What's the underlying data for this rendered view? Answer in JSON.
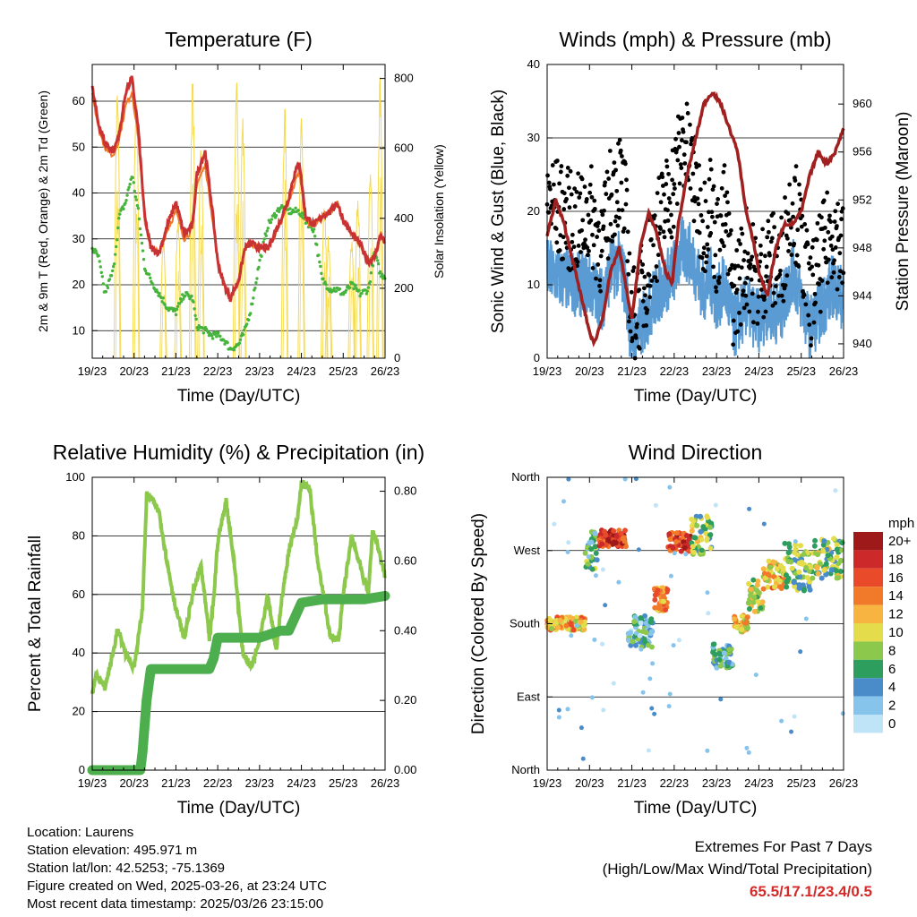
{
  "info": {
    "location": "Location: Laurens",
    "elevation": "Station elevation: 495.971 m",
    "latlon": "Station lat/lon: 42.5253; -75.1369",
    "created": "Figure created on Wed, 2025-03-26, at 23:24 UTC",
    "recent": "Most recent data timestamp: 2025/03/26 23:15:00"
  },
  "extremes": {
    "title": "Extremes For Past 7 Days",
    "subtitle": "(High/Low/Max Wind/Total Precipitation)",
    "values": "65.5/17.1/23.4/0.5"
  },
  "colors": {
    "temp2m": "#c83232",
    "temp9m": "#f07828",
    "dewpoint": "#46b43c",
    "solar": "#f5d94a",
    "wind": "#5a9bd3",
    "gust": "#000000",
    "pressure": "#a02020",
    "rh": "#8cc84b",
    "precip": "#4cae4c"
  },
  "chart_data": [
    {
      "type": "line",
      "title": "Temperature (F)",
      "xlabel": "Time (Day/UTC)",
      "ylabel": "2m & 9m T (Red, Orange) & 2m Td (Green)",
      "y2label": "Solar Insolation (Yellow)",
      "x_ticks": [
        "19/23",
        "20/23",
        "21/23",
        "22/23",
        "23/23",
        "24/23",
        "25/23",
        "26/23"
      ],
      "ylim": [
        4,
        68
      ],
      "y_ticks": [
        10,
        20,
        30,
        40,
        50,
        60
      ],
      "y2lim": [
        0,
        840
      ],
      "y2_ticks": [
        0,
        200,
        400,
        600,
        800
      ],
      "grid": true,
      "x_days": [
        0,
        0.15,
        0.3,
        0.5,
        0.65,
        0.8,
        0.95,
        1.1,
        1.25,
        1.4,
        1.6,
        1.8,
        2.0,
        2.2,
        2.4,
        2.5,
        2.7,
        2.85,
        3.0,
        3.15,
        3.3,
        3.5,
        3.65,
        3.8,
        4.0,
        4.2,
        4.5,
        4.7,
        4.8,
        4.95,
        5.1,
        5.3,
        5.5,
        5.7,
        5.85,
        6.0,
        6.2,
        6.4,
        6.6,
        6.75,
        6.9,
        7.0
      ],
      "series": [
        {
          "values": [
            63,
            55,
            51,
            49,
            53,
            62,
            65,
            54,
            35,
            28,
            27,
            33,
            38,
            31,
            33,
            44,
            49,
            38,
            25,
            20,
            17,
            21,
            28,
            29,
            28,
            28,
            34,
            39,
            43,
            47,
            35,
            33,
            35,
            36,
            38,
            34,
            31,
            29,
            25,
            26,
            31,
            29
          ]
        },
        {
          "values": [
            62,
            54,
            50,
            48,
            52,
            59,
            62,
            52,
            34,
            28,
            27,
            32,
            36,
            30,
            32,
            42,
            46,
            36,
            25,
            20,
            17,
            21,
            28,
            29,
            28,
            28,
            33,
            38,
            41,
            45,
            34,
            33,
            35,
            36,
            38,
            34,
            31,
            29,
            25,
            26,
            31,
            29
          ]
        },
        {
          "values": [
            28,
            26,
            18,
            23,
            35,
            38,
            44,
            36,
            24,
            21,
            18,
            15,
            14,
            18,
            17,
            11,
            10,
            9,
            9,
            8,
            6,
            7,
            10,
            15,
            25,
            33,
            37,
            36,
            36,
            36,
            34,
            32,
            21,
            19,
            19,
            18,
            20,
            18,
            19,
            27,
            22,
            22
          ]
        }
      ],
      "solar": {
        "days": [
          0.6,
          1.05,
          1.7,
          2.05,
          2.4,
          2.6,
          3.45,
          3.6,
          4.6,
          5.0,
          5.55,
          5.65,
          6.2,
          6.35,
          6.65,
          6.88
        ],
        "peaks": [
          780,
          790,
          350,
          420,
          810,
          610,
          810,
          690,
          730,
          690,
          450,
          360,
          360,
          470,
          550,
          820
        ]
      }
    },
    {
      "type": "scatter",
      "title": "Winds (mph) & Pressure (mb)",
      "xlabel": "Time (Day/UTC)",
      "ylabel": "Sonic Wind & Gust (Blue, Black)",
      "y2label": "Station Pressure (Maroon)",
      "x_ticks": [
        "19/23",
        "20/23",
        "21/23",
        "22/23",
        "23/23",
        "24/23",
        "25/23",
        "26/23"
      ],
      "ylim": [
        0,
        40
      ],
      "y_ticks": [
        0,
        10,
        20,
        30,
        40
      ],
      "y2lim": [
        938.8,
        963.3
      ],
      "y2_ticks": [
        940,
        944,
        948,
        952,
        956,
        960
      ],
      "grid": true,
      "wind_x": [
        0,
        0.3,
        0.7,
        1.0,
        1.3,
        1.5,
        1.7,
        1.85,
        2.0,
        2.3,
        2.5,
        2.75,
        3.0,
        3.2,
        3.4,
        3.7,
        3.85,
        4.0,
        4.2,
        4.4,
        4.7,
        5.0,
        5.2,
        5.5,
        5.8,
        6.0,
        6.2,
        6.5,
        6.75,
        7.0
      ],
      "wind_mean": [
        12,
        11,
        10,
        10,
        8,
        12,
        13,
        10,
        2,
        5,
        8,
        10,
        12,
        15,
        14,
        9,
        11,
        8,
        10,
        4,
        7,
        5,
        7,
        6,
        12,
        8,
        4,
        7,
        10,
        8
      ],
      "gust_mean": [
        22,
        20,
        18,
        20,
        15,
        22,
        25,
        20,
        5,
        10,
        16,
        20,
        24,
        30,
        26,
        18,
        22,
        15,
        20,
        8,
        14,
        10,
        14,
        12,
        22,
        16,
        8,
        14,
        18,
        14
      ],
      "pressure_x": [
        0,
        0.2,
        0.4,
        0.6,
        0.8,
        1.0,
        1.1,
        1.3,
        1.5,
        1.7,
        1.9,
        2.0,
        2.2,
        2.4,
        2.6,
        2.8,
        2.95,
        3.1,
        3.3,
        3.5,
        3.7,
        3.9,
        4.1,
        4.3,
        4.5,
        4.7,
        4.9,
        5.0,
        5.2,
        5.4,
        5.6,
        5.8,
        6.0,
        6.2,
        6.4,
        6.6,
        6.8,
        7.0
      ],
      "pressure": [
        949,
        952,
        950,
        947,
        944,
        941,
        940,
        942,
        946,
        948,
        944,
        942,
        948,
        951,
        949,
        946,
        945,
        950,
        954,
        957,
        960,
        961,
        960,
        958,
        956,
        951,
        948,
        946,
        944,
        948,
        950,
        950,
        951,
        954,
        956,
        955,
        956,
        958
      ]
    },
    {
      "type": "line",
      "title": "Relative Humidity (%) & Precipitation (in)",
      "xlabel": "Time (Day/UTC)",
      "ylabel": "Percent & Total Rainfall",
      "x_ticks": [
        "19/23",
        "20/23",
        "21/23",
        "22/23",
        "23/23",
        "24/23",
        "25/23",
        "26/23"
      ],
      "ylim": [
        0,
        100
      ],
      "y_ticks": [
        0,
        20,
        40,
        60,
        80,
        100
      ],
      "y2lim": [
        0,
        0.84
      ],
      "y2_ticks": [
        "0.00",
        "0.20",
        "0.40",
        "0.60",
        "0.80"
      ],
      "grid": true,
      "rh_x": [
        0,
        0.1,
        0.3,
        0.5,
        0.6,
        0.8,
        1.0,
        1.2,
        1.3,
        1.4,
        1.6,
        1.8,
        2.0,
        2.2,
        2.4,
        2.6,
        2.8,
        2.9,
        3.0,
        3.2,
        3.4,
        3.6,
        3.8,
        4.0,
        4.2,
        4.4,
        4.5,
        4.7,
        4.9,
        5.0,
        5.2,
        5.4,
        5.5,
        5.7,
        5.9,
        6.0,
        6.2,
        6.4,
        6.6,
        6.7,
        6.8,
        7.0
      ],
      "rh": [
        26,
        33,
        28,
        40,
        48,
        40,
        35,
        55,
        94,
        93,
        88,
        70,
        55,
        45,
        60,
        70,
        45,
        58,
        78,
        92,
        70,
        40,
        35,
        45,
        60,
        40,
        55,
        75,
        85,
        98,
        96,
        70,
        62,
        45,
        45,
        60,
        80,
        70,
        60,
        82,
        78,
        66
      ],
      "precip_x": [
        0,
        1.15,
        1.2,
        1.3,
        1.4,
        2.0,
        2.5,
        2.8,
        2.9,
        3.0,
        3.5,
        3.7,
        3.8,
        4.0,
        4.5,
        4.7,
        5.0,
        5.5,
        6.0,
        6.5,
        7.0
      ],
      "precip": [
        0,
        0,
        0.05,
        0.2,
        0.29,
        0.29,
        0.29,
        0.29,
        0.32,
        0.38,
        0.38,
        0.38,
        0.38,
        0.38,
        0.4,
        0.4,
        0.48,
        0.49,
        0.49,
        0.49,
        0.5
      ]
    },
    {
      "type": "scatter",
      "title": "Wind Direction",
      "xlabel": "Time (Day/UTC)",
      "ylabel": "Direction (Colored By Speed)",
      "x_ticks": [
        "19/23",
        "20/23",
        "21/23",
        "22/23",
        "23/23",
        "24/23",
        "25/23",
        "26/23"
      ],
      "y_ticks": [
        "North",
        "East",
        "South",
        "West",
        "North"
      ],
      "ylim": [
        0,
        360
      ],
      "grid": true,
      "legend": {
        "title": "mph",
        "labels": [
          "0",
          "2",
          "4",
          "6",
          "8",
          "10",
          "12",
          "14",
          "16",
          "18",
          "20+"
        ],
        "colors": [
          "#bfe3f7",
          "#86c4ec",
          "#4a8cc9",
          "#2e9e5e",
          "#8cc84b",
          "#e4dc4a",
          "#f7b440",
          "#f07a2a",
          "#e84a2a",
          "#cc2a2a",
          "#9e1a1a"
        ]
      },
      "clusters": [
        {
          "d0": 0.0,
          "d1": 0.9,
          "dir": 180,
          "spread": 8,
          "speed": 12
        },
        {
          "d0": 0.9,
          "d1": 1.2,
          "dir": 270,
          "spread": 25,
          "speed": 6
        },
        {
          "d0": 1.2,
          "d1": 1.9,
          "dir": 285,
          "spread": 10,
          "speed": 17
        },
        {
          "d0": 1.9,
          "d1": 2.5,
          "dir": 170,
          "spread": 20,
          "speed": 4
        },
        {
          "d0": 2.5,
          "d1": 2.85,
          "dir": 210,
          "spread": 15,
          "speed": 13
        },
        {
          "d0": 2.85,
          "d1": 3.4,
          "dir": 280,
          "spread": 12,
          "speed": 17
        },
        {
          "d0": 3.4,
          "d1": 3.9,
          "dir": 290,
          "spread": 25,
          "speed": 8
        },
        {
          "d0": 3.9,
          "d1": 4.4,
          "dir": 140,
          "spread": 15,
          "speed": 5
        },
        {
          "d0": 4.4,
          "d1": 4.75,
          "dir": 180,
          "spread": 10,
          "speed": 11
        },
        {
          "d0": 4.75,
          "d1": 5.1,
          "dir": 215,
          "spread": 20,
          "speed": 9
        },
        {
          "d0": 5.1,
          "d1": 5.6,
          "dir": 240,
          "spread": 18,
          "speed": 12
        },
        {
          "d0": 5.6,
          "d1": 6.3,
          "dir": 250,
          "spread": 30,
          "speed": 7
        },
        {
          "d0": 6.3,
          "d1": 7.0,
          "dir": 260,
          "spread": 25,
          "speed": 8
        }
      ]
    }
  ]
}
